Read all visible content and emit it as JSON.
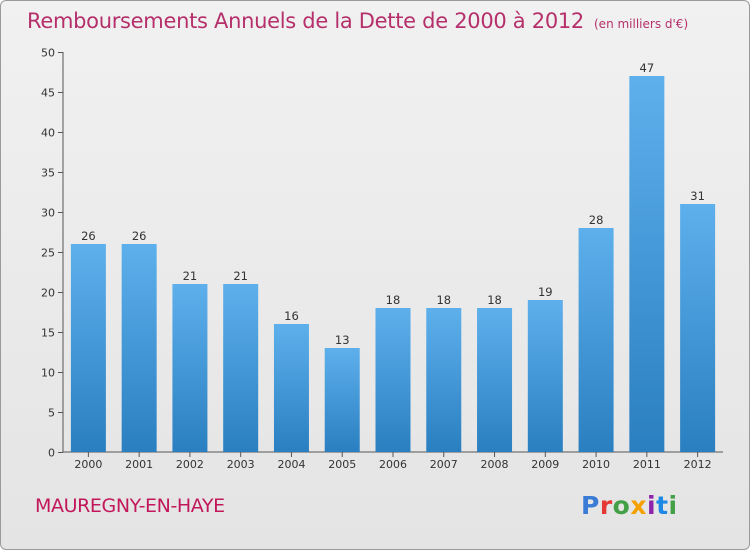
{
  "title": "Remboursements Annuels de la Dette de 2000 à 2012",
  "unit_note": "(en milliers d'€)",
  "place": "MAUREGNY-EN-HAYE",
  "logo": {
    "text": "Proxiti",
    "colors": [
      "#3a7bd5",
      "#e53935",
      "#43a047",
      "#f4a100",
      "#8e24aa",
      "#1e88e5",
      "#43a047"
    ]
  },
  "colors": {
    "bar_top": "#5eb0ec",
    "bar_bottom": "#2a7fc0",
    "title": "#b5306b",
    "place": "#c2185b"
  },
  "chart_data": {
    "type": "bar",
    "title": "Remboursements Annuels de la Dette de 2000 à 2012",
    "categories": [
      "2000",
      "2001",
      "2002",
      "2003",
      "2004",
      "2005",
      "2006",
      "2007",
      "2008",
      "2009",
      "2010",
      "2011",
      "2012"
    ],
    "values": [
      26,
      26,
      21,
      21,
      16,
      13,
      18,
      18,
      18,
      19,
      28,
      47,
      31
    ],
    "ylim": [
      0,
      50
    ],
    "yticks": [
      0,
      5,
      10,
      15,
      20,
      25,
      30,
      35,
      40,
      45,
      50
    ],
    "grid": false
  }
}
